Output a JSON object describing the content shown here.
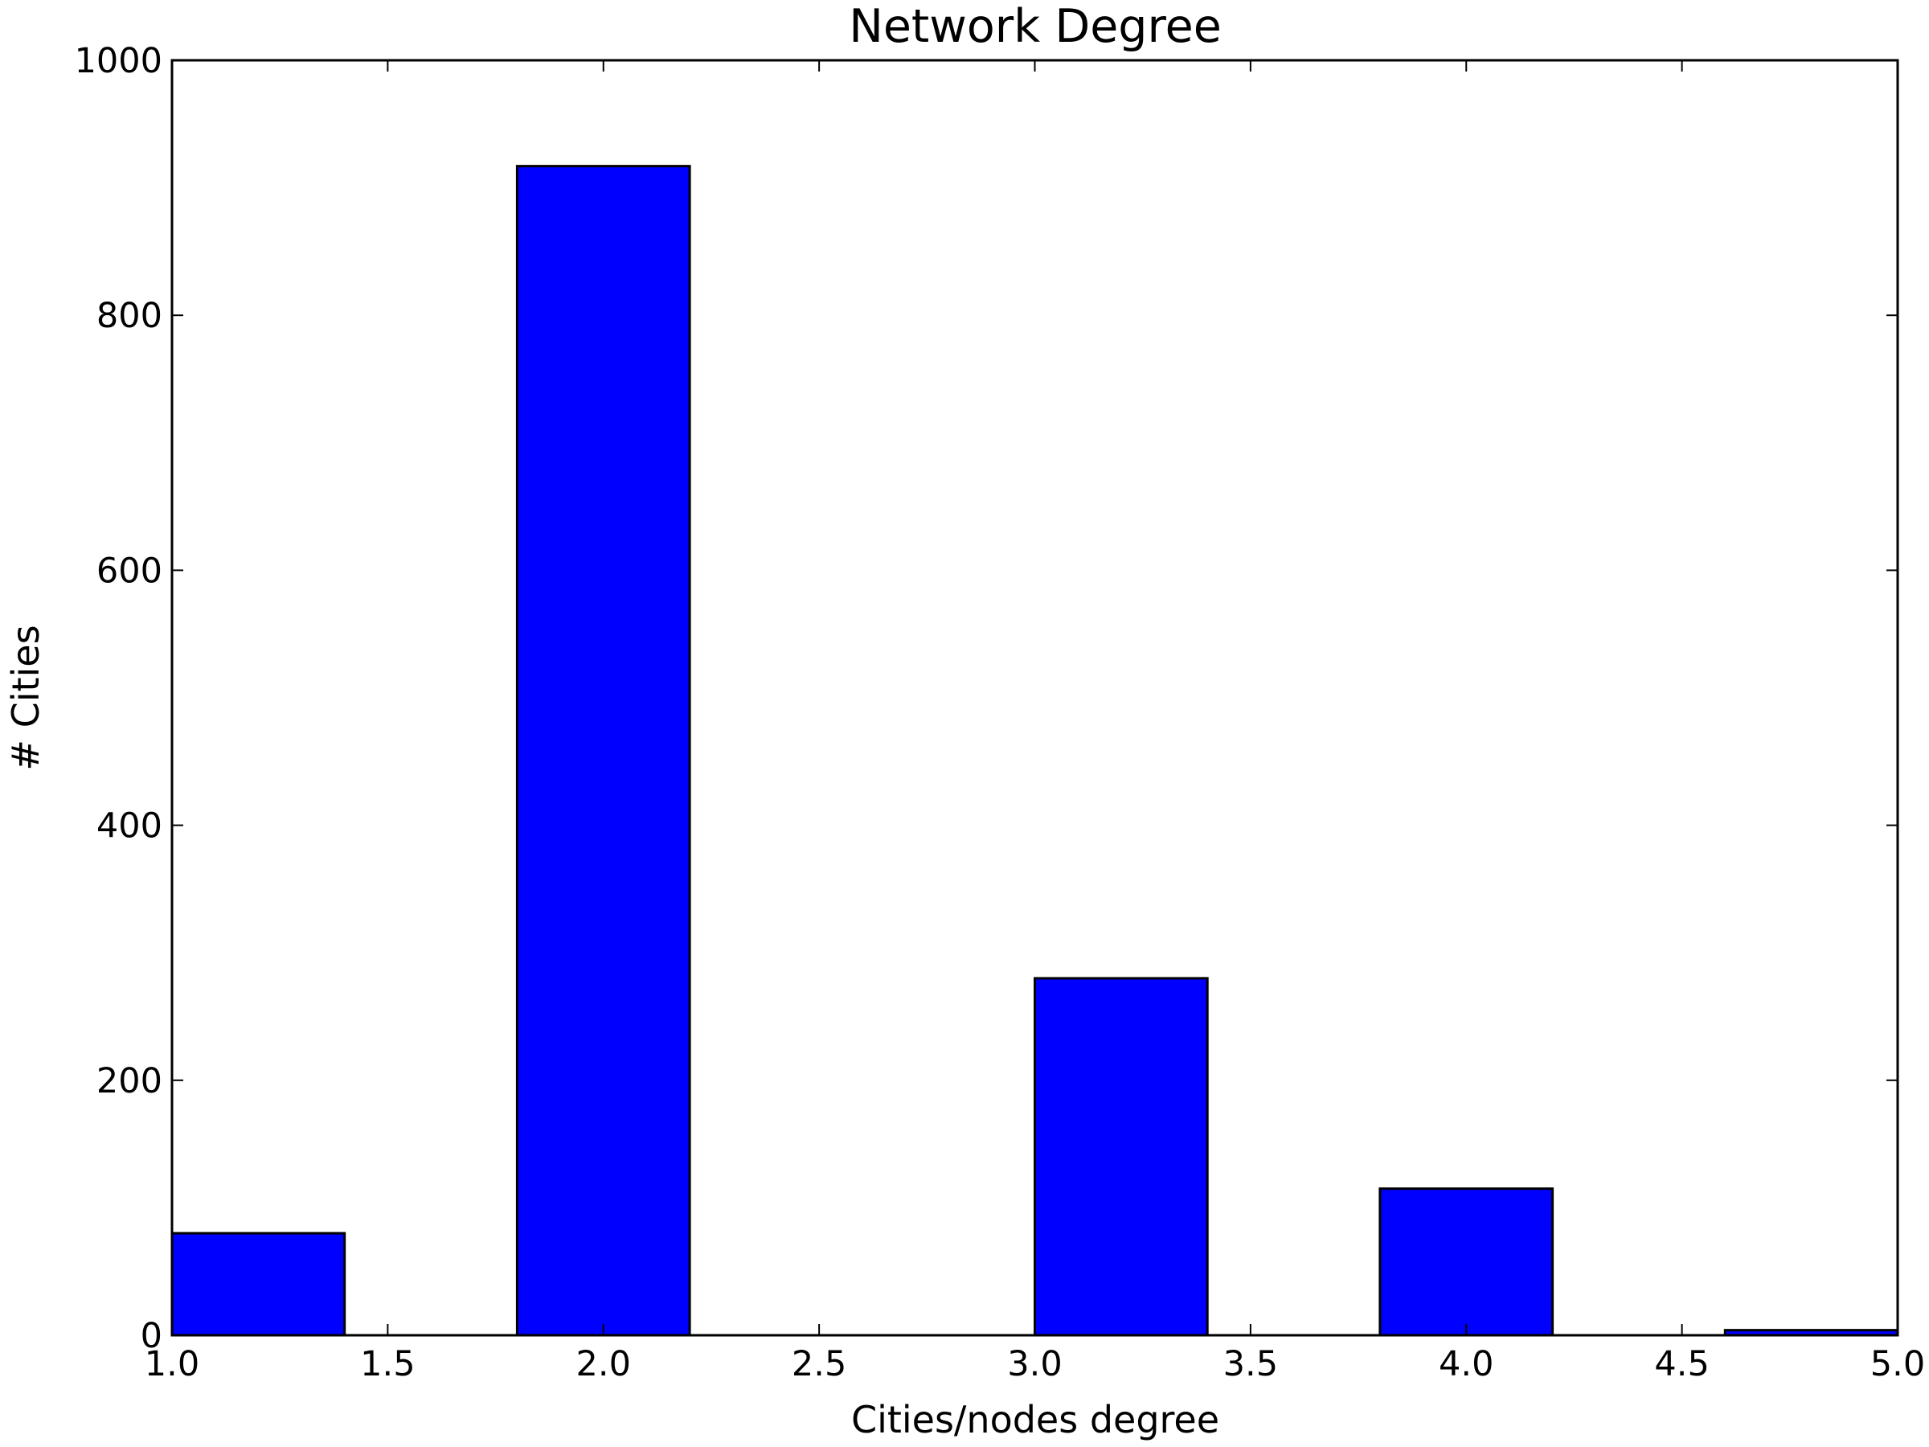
{
  "chart_data": {
    "type": "bar",
    "title": "Network Degree",
    "xlabel": "Cities/nodes degree",
    "ylabel": "# Cities",
    "xlim": [
      1.0,
      5.0
    ],
    "ylim": [
      0,
      1000
    ],
    "grid": false,
    "legend": "none",
    "bar_color": "#0000ff",
    "edge_color": "#000000",
    "x_ticks": [
      "1.0",
      "1.5",
      "2.0",
      "2.5",
      "3.0",
      "3.5",
      "4.0",
      "4.5",
      "5.0"
    ],
    "y_ticks": [
      "0",
      "200",
      "400",
      "600",
      "800",
      "1000"
    ],
    "bins": [
      {
        "x0": 1.0,
        "x1": 1.4,
        "value": 80
      },
      {
        "x0": 1.4,
        "x1": 1.8,
        "value": 0
      },
      {
        "x0": 1.8,
        "x1": 2.2,
        "value": 917
      },
      {
        "x0": 2.2,
        "x1": 2.6,
        "value": 0
      },
      {
        "x0": 2.6,
        "x1": 3.0,
        "value": 0
      },
      {
        "x0": 3.0,
        "x1": 3.4,
        "value": 280
      },
      {
        "x0": 3.4,
        "x1": 3.8,
        "value": 0
      },
      {
        "x0": 3.8,
        "x1": 4.2,
        "value": 115
      },
      {
        "x0": 4.2,
        "x1": 4.6,
        "value": 0
      },
      {
        "x0": 4.6,
        "x1": 5.0,
        "value": 4
      }
    ]
  }
}
